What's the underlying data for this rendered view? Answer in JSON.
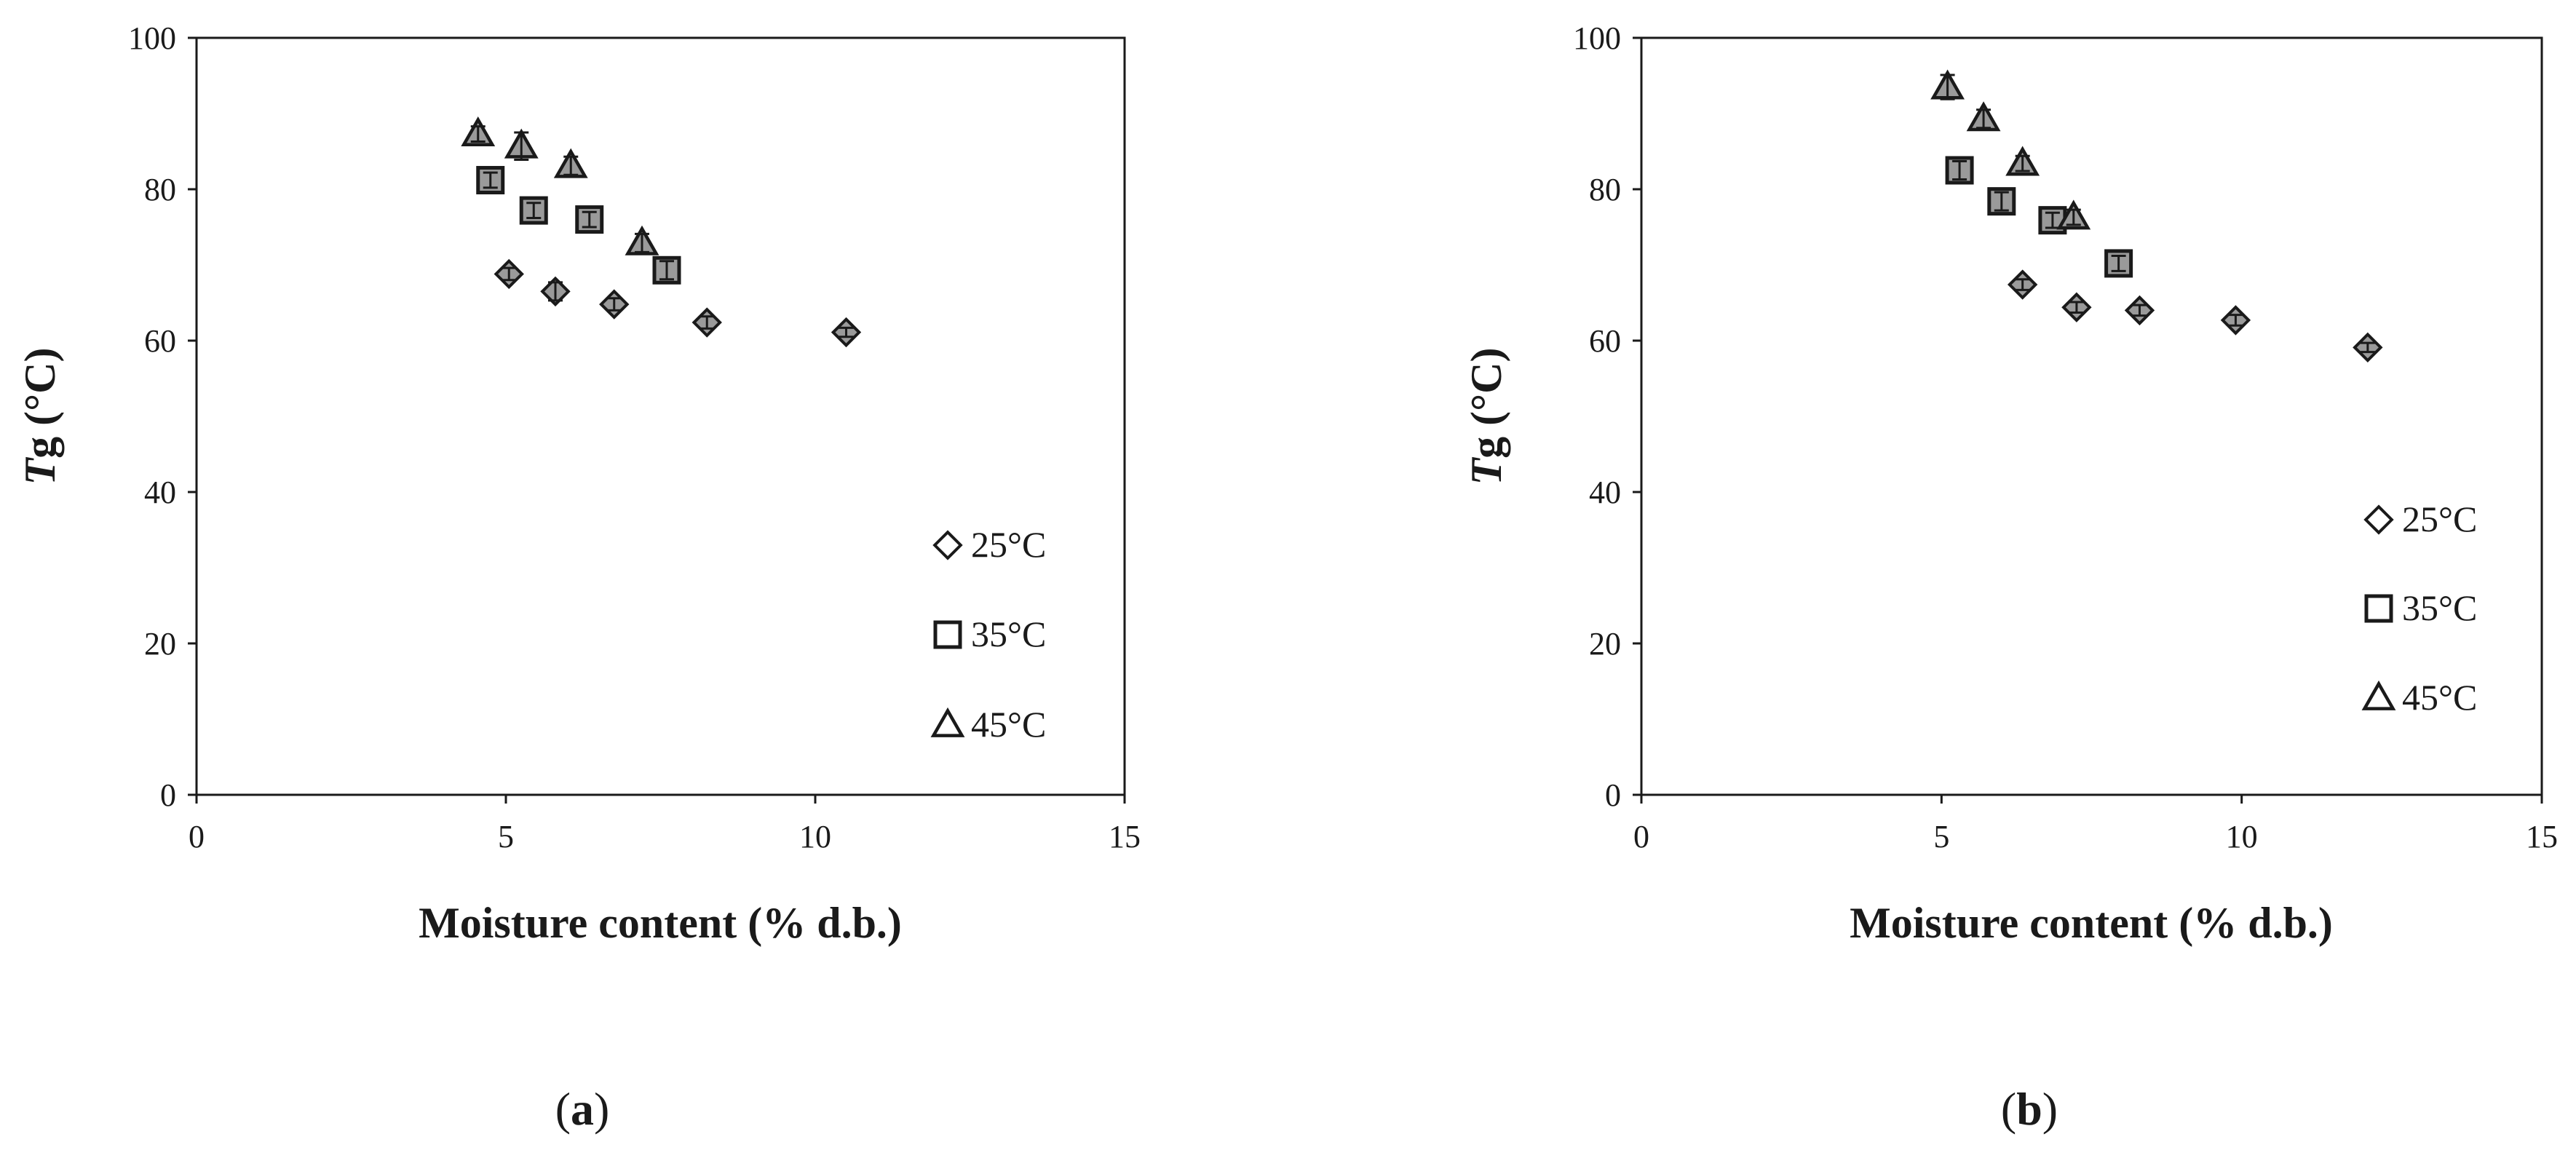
{
  "chart_data": [
    {
      "type": "scatter",
      "panel_label": "a",
      "xlabel": "Moisture content (% d.b.)",
      "ylabel_italic": "T",
      "ylabel_rest": "g (°C)",
      "xlim": [
        0,
        15
      ],
      "ylim": [
        0,
        100
      ],
      "xticks": [
        0,
        5,
        10,
        15
      ],
      "yticks": [
        0,
        20,
        40,
        60,
        80,
        100
      ],
      "grid": false,
      "legend_position": "bottom-right",
      "series": [
        {
          "name": "25°C",
          "marker": "diamond",
          "points": [
            [
              5.05,
              68.8
            ],
            [
              5.8,
              66.5
            ],
            [
              6.75,
              64.8
            ],
            [
              8.25,
              62.4
            ],
            [
              10.5,
              61.1
            ]
          ],
          "errors": [
            0.8,
            1.2,
            0.8,
            0.8,
            0.6
          ]
        },
        {
          "name": "35°C",
          "marker": "square",
          "points": [
            [
              4.75,
              81.2
            ],
            [
              5.45,
              77.2
            ],
            [
              6.35,
              76.0
            ],
            [
              7.6,
              69.3
            ]
          ],
          "errors": [
            1.0,
            1.0,
            1.0,
            1.2
          ]
        },
        {
          "name": "45°C",
          "marker": "triangle",
          "points": [
            [
              4.55,
              87.3
            ],
            [
              5.25,
              85.7
            ],
            [
              6.05,
              83.1
            ],
            [
              7.2,
              72.9
            ]
          ],
          "errors": [
            1.0,
            1.8,
            1.2,
            1.2
          ]
        }
      ]
    },
    {
      "type": "scatter",
      "panel_label": "b",
      "xlabel": "Moisture content (% d.b.)",
      "ylabel_italic": "T",
      "ylabel_rest": "g (°C)",
      "xlim": [
        0,
        15
      ],
      "ylim": [
        0,
        100
      ],
      "xticks": [
        0,
        5,
        10,
        15
      ],
      "yticks": [
        0,
        20,
        40,
        60,
        80,
        100
      ],
      "grid": false,
      "legend_position": "bottom-right",
      "series": [
        {
          "name": "25°C",
          "marker": "diamond",
          "points": [
            [
              6.35,
              67.4
            ],
            [
              7.25,
              64.4
            ],
            [
              8.3,
              64.0
            ],
            [
              9.9,
              62.7
            ],
            [
              12.1,
              59.1
            ]
          ],
          "errors": [
            0.7,
            0.7,
            0.7,
            0.7,
            0.6
          ]
        },
        {
          "name": "35°C",
          "marker": "square",
          "points": [
            [
              5.3,
              82.5
            ],
            [
              6.0,
              78.4
            ],
            [
              6.85,
              75.9
            ],
            [
              7.95,
              70.2
            ]
          ],
          "errors": [
            1.2,
            1.2,
            1.0,
            1.0
          ]
        },
        {
          "name": "45°C",
          "marker": "triangle",
          "points": [
            [
              5.1,
              93.5
            ],
            [
              5.7,
              89.3
            ],
            [
              6.35,
              83.4
            ],
            [
              7.2,
              76.3
            ]
          ],
          "errors": [
            1.6,
            1.2,
            1.0,
            1.0
          ]
        }
      ]
    }
  ]
}
